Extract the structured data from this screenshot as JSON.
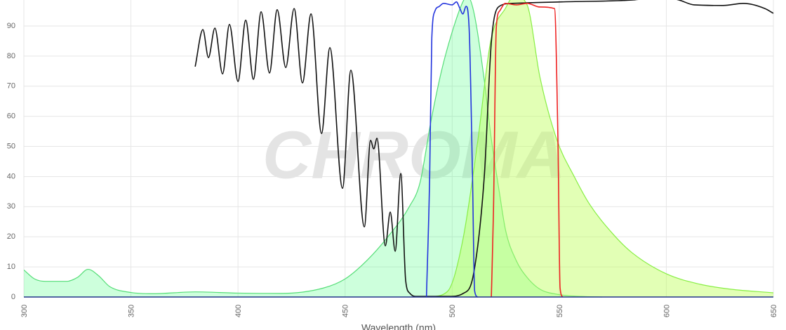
{
  "chart_data": {
    "type": "line",
    "x_label": "Wavelength (nm)",
    "watermark": "CHROMA",
    "xlim": [
      300,
      650
    ],
    "ylim": [
      0,
      100
    ],
    "xticks": [
      300,
      350,
      400,
      450,
      500,
      550,
      600,
      650
    ],
    "yticks": [
      0,
      10,
      20,
      30,
      40,
      50,
      60,
      70,
      80,
      90
    ],
    "grid": true,
    "series": [
      {
        "color": "#55dd77",
        "fill": "rgba(60,255,120,0.26)",
        "x": [
          300,
          305,
          310,
          320,
          325,
          330,
          335,
          340,
          350,
          360,
          380,
          400,
          420,
          440,
          450,
          460,
          470,
          480,
          485,
          490,
          495,
          500,
          505,
          507,
          510,
          515,
          518,
          522,
          525,
          530,
          535,
          541,
          550,
          560,
          570
        ],
        "values": [
          9,
          6,
          5.2,
          5.2,
          6.5,
          9.2,
          7,
          3.5,
          1.5,
          1.1,
          1.7,
          1.3,
          1.2,
          3,
          6,
          12,
          20,
          30,
          38,
          58,
          75,
          88,
          98,
          100,
          95,
          72,
          54,
          35,
          22,
          12,
          6.5,
          2.6,
          0.8,
          0.2,
          0
        ]
      },
      {
        "color": "#88ee44",
        "fill": "rgba(190,255,90,0.45)",
        "x": [
          490,
          498,
          505,
          512,
          518,
          525,
          529,
          535,
          541,
          549,
          557,
          564,
          575,
          584,
          600,
          616,
          630,
          650
        ],
        "values": [
          0,
          2,
          19,
          52,
          85,
          96,
          100,
          97,
          73,
          52,
          40,
          31,
          21,
          14.7,
          7.7,
          4.2,
          2.6,
          1.4
        ]
      },
      {
        "color": "#111111",
        "fill": null,
        "x": [
          380,
          383.6,
          386.2,
          389.2,
          392.8,
          396,
          400,
          403.6,
          407.2,
          410.8,
          414.7,
          418.3,
          422.3,
          426.2,
          430.1,
          434.1,
          439,
          442.9,
          448.8,
          452.7,
          459,
          461.9,
          463.4,
          464.9,
          468.8,
          471.1,
          473.4,
          476,
          478.3,
          480.3,
          482.9,
          498.6,
          505.2,
          510,
          515,
          518.3,
          521.6,
          528,
          551,
          583.8,
          598.6,
          606,
          613,
          626.5,
          636,
          646,
          650
        ],
        "values": [
          76.5,
          88.8,
          79.5,
          89.3,
          74.1,
          90.5,
          71.6,
          91.9,
          72.3,
          94.7,
          74.4,
          95.4,
          76.2,
          95.8,
          71.1,
          94,
          54.3,
          82.8,
          36.1,
          75.3,
          23.3,
          52,
          49.2,
          52.7,
          17,
          28.2,
          15.2,
          41,
          5.4,
          1.2,
          0.2,
          0.2,
          1.2,
          7.7,
          40,
          84.6,
          96.3,
          97.5,
          98,
          98.6,
          99.6,
          98.6,
          97,
          96.8,
          97.5,
          95.8,
          94.2
        ]
      },
      {
        "color": "#2233dd",
        "fill": null,
        "x": [
          488,
          489.5,
          490.5,
          492,
          494,
          496,
          500,
          502,
          503.5,
          505,
          506.5,
          508,
          509.5,
          510.5,
          512
        ],
        "values": [
          0,
          40,
          86,
          95,
          96.5,
          97.5,
          97,
          98,
          96,
          94,
          96.5,
          88,
          40,
          2,
          0
        ]
      },
      {
        "color": "#ee2222",
        "fill": null,
        "x": [
          518.3,
          519.3,
          520.6,
          522.2,
          524.8,
          530,
          535,
          541,
          547.8,
          549.4,
          550.4,
          551.7
        ],
        "values": [
          0,
          28.7,
          89.3,
          95,
          97.5,
          97,
          97.5,
          96.3,
          95.8,
          52,
          3,
          0
        ]
      }
    ]
  }
}
